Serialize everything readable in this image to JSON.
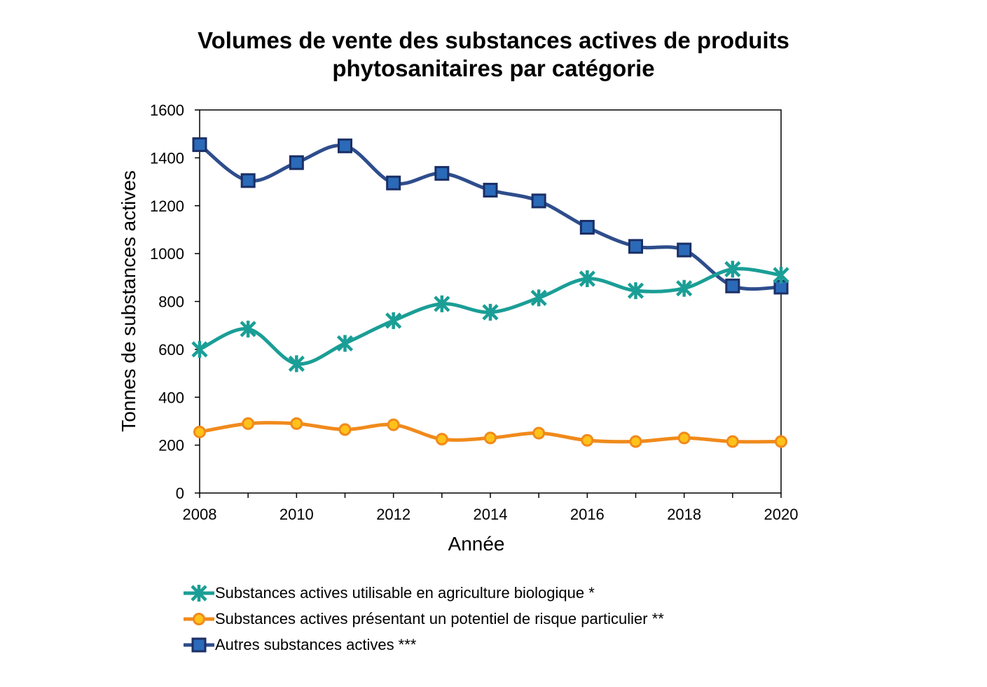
{
  "title": {
    "line1": "Volumes de vente des substances actives de produits",
    "line2": "phytosanitaires par catégorie"
  },
  "chart_data": {
    "type": "line",
    "title": "Volumes de vente des substances actives de produits phytosanitaires par catégorie",
    "xlabel": "Année",
    "ylabel": "Tonnes de substances actives",
    "x": [
      2008,
      2009,
      2010,
      2011,
      2012,
      2013,
      2014,
      2015,
      2016,
      2017,
      2018,
      2019,
      2020
    ],
    "xlim": [
      2008,
      2020
    ],
    "ylim": [
      0,
      1600
    ],
    "x_ticks": [
      "2008",
      "2010",
      "2012",
      "2014",
      "2016",
      "2018",
      "2020"
    ],
    "y_ticks": [
      "0",
      "200",
      "400",
      "600",
      "800",
      "1000",
      "1200",
      "1400",
      "1600"
    ],
    "grid": false,
    "legend_position": "bottom",
    "series": [
      {
        "name": "Substances actives utilisable en agriculture biologique *",
        "color": "#1a9e96",
        "marker": "star",
        "values": [
          600,
          685,
          540,
          625,
          720,
          790,
          755,
          815,
          895,
          845,
          855,
          935,
          910
        ]
      },
      {
        "name": "Substances actives présentant un potentiel de risque particulier **",
        "color": "#f08a1c",
        "marker": "circle",
        "values": [
          255,
          290,
          290,
          265,
          285,
          225,
          230,
          250,
          220,
          215,
          230,
          215,
          215
        ]
      },
      {
        "name": "Autres substances actives ***",
        "color": "#2e4d8c",
        "marker": "square",
        "values": [
          1455,
          1305,
          1380,
          1450,
          1295,
          1335,
          1265,
          1220,
          1110,
          1030,
          1015,
          865,
          860
        ]
      }
    ]
  }
}
